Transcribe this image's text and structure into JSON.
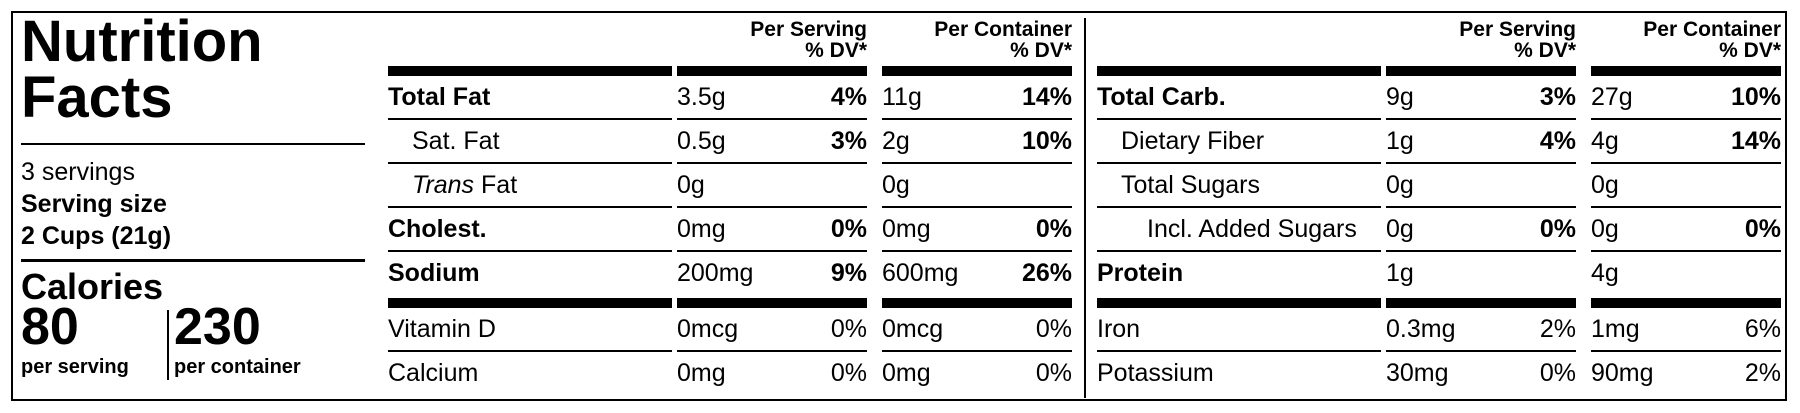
{
  "panel": {
    "title": "Nutrition Facts",
    "servings": "3 servings",
    "serving_size_label": "Serving size",
    "serving_size": "2 Cups (21g)",
    "calories_label": "Calories",
    "calories_per_serving": "80",
    "per_serving_label": "per serving",
    "calories_per_container": "230",
    "per_container_label": "per container"
  },
  "tables": [
    {
      "headers": [
        {
          "title": "Per Serving",
          "subtitle": "% DV*"
        },
        {
          "title": "Per Container",
          "subtitle": "% DV*"
        }
      ],
      "rows": [
        {
          "name": "Total Fat",
          "bold": true,
          "indent": 0,
          "serving_amount": "3.5g",
          "serving_dv": "4%",
          "container_amount": "11g",
          "container_dv": "14%"
        },
        {
          "name": "Sat. Fat",
          "bold": false,
          "indent": 1,
          "serving_amount": "0.5g",
          "serving_dv": "3%",
          "container_amount": "2g",
          "container_dv": "10%"
        },
        {
          "name_italic": "Trans",
          "name": "Fat",
          "bold": false,
          "indent": 1,
          "serving_amount": "0g",
          "container_amount": "0g"
        },
        {
          "name": "Cholest.",
          "bold": true,
          "indent": 0,
          "serving_amount": "0mg",
          "serving_dv": "0%",
          "container_amount": "0mg",
          "container_dv": "0%"
        },
        {
          "name": "Sodium",
          "bold": true,
          "indent": 0,
          "serving_amount": "200mg",
          "serving_dv": "9%",
          "container_amount": "600mg",
          "container_dv": "26%"
        }
      ],
      "micro_rows": [
        {
          "name": "Vitamin D",
          "serving_amount": "0mcg",
          "serving_dv": "0%",
          "container_amount": "0mcg",
          "container_dv": "0%"
        },
        {
          "name": "Calcium",
          "serving_amount": "0mg",
          "serving_dv": "0%",
          "container_amount": "0mg",
          "container_dv": "0%"
        }
      ]
    },
    {
      "headers": [
        {
          "title": "Per Serving",
          "subtitle": "% DV*"
        },
        {
          "title": "Per Container",
          "subtitle": "% DV*"
        }
      ],
      "rows": [
        {
          "name": "Total Carb.",
          "bold": true,
          "indent": 0,
          "serving_amount": "9g",
          "serving_dv": "3%",
          "container_amount": "27g",
          "container_dv": "10%"
        },
        {
          "name": "Dietary Fiber",
          "bold": false,
          "indent": 1,
          "serving_amount": "1g",
          "serving_dv": "4%",
          "container_amount": "4g",
          "container_dv": "14%"
        },
        {
          "name": "Total Sugars",
          "bold": false,
          "indent": 1,
          "serving_amount": "0g",
          "container_amount": "0g"
        },
        {
          "name": "Incl. Added Sugars",
          "bold": false,
          "indent": 2,
          "serving_amount": "0g",
          "serving_dv": "0%",
          "container_amount": "0g",
          "container_dv": "0%"
        },
        {
          "name": "Protein",
          "bold": true,
          "indent": 0,
          "serving_amount": "1g",
          "container_amount": "4g"
        }
      ],
      "micro_rows": [
        {
          "name": "Iron",
          "serving_amount": "0.3mg",
          "serving_dv": "2%",
          "container_amount": "1mg",
          "container_dv": "6%"
        },
        {
          "name": "Potassium",
          "serving_amount": "30mg",
          "serving_dv": "0%",
          "container_amount": "90mg",
          "container_dv": "2%"
        }
      ]
    }
  ]
}
